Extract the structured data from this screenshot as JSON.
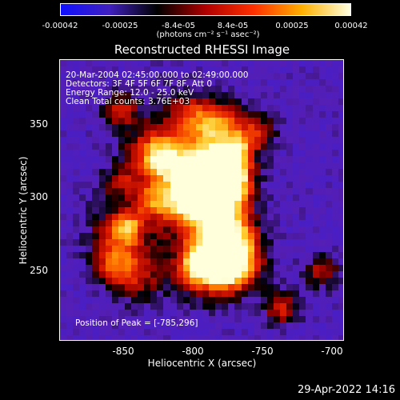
{
  "colorbar": {
    "ticks": [
      "-0.00042",
      "-0.00025",
      "-8.4e-05",
      "8.4e-05",
      "0.00025",
      "0.00042"
    ],
    "unit_label": "(photons cm⁻² s⁻¹ asec⁻²)",
    "colors": [
      "#1010ff",
      "#4020c0",
      "#000000",
      "#b00000",
      "#ff3000",
      "#ffb000",
      "#ffffe0"
    ]
  },
  "plot": {
    "title": "Reconstructed RHESSI Image",
    "annotations": [
      "20-Mar-2004 02:45:00.000 to 02:49:00.000",
      "Detectors: 3F 4F 5F 6F 7F 8F, Att 0",
      "Energy Range: 12.0 - 25.0 keV",
      "Clean     Total counts: 3.76E+03"
    ],
    "peak_label": "Position of Peak = [-785,296]",
    "x_axis": {
      "label": "Heliocentric X (arcsec)",
      "ticks": [
        "-850",
        "-800",
        "-750",
        "-700"
      ]
    },
    "y_axis": {
      "label": "Heliocentric Y (arcsec)",
      "ticks": [
        "350",
        "300",
        "250"
      ]
    }
  },
  "footer": {
    "date": "29-Apr-2022 14:16"
  }
}
